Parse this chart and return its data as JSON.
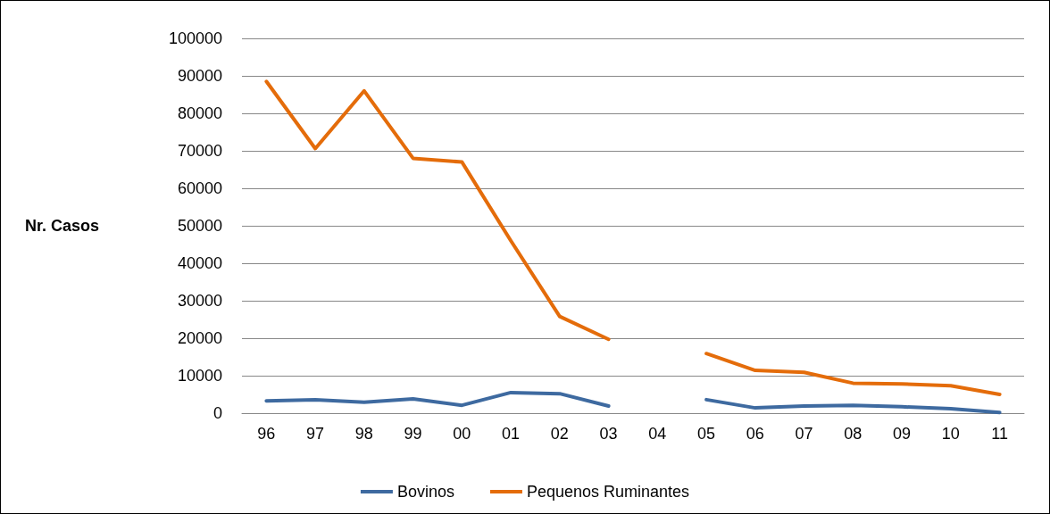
{
  "chart_data": {
    "type": "line",
    "ylabel": "Nr. Casos",
    "categories": [
      "96",
      "97",
      "98",
      "99",
      "00",
      "01",
      "02",
      "03",
      "04",
      "05",
      "06",
      "07",
      "08",
      "09",
      "10",
      "11"
    ],
    "series": [
      {
        "name": "Bovinos",
        "color": "#3e6aa0",
        "values": [
          3300,
          3600,
          2900,
          3800,
          2100,
          5500,
          5200,
          1900,
          null,
          3600,
          1400,
          1900,
          2100,
          1700,
          1200,
          200
        ]
      },
      {
        "name": "Pequenos Ruminantes",
        "color": "#e46c0a",
        "values": [
          88500,
          70600,
          86000,
          68000,
          67000,
          46000,
          25800,
          19700,
          null,
          15900,
          11400,
          10900,
          8000,
          7800,
          7300,
          5000
        ]
      }
    ],
    "ylim": [
      0,
      100000
    ],
    "yticks": [
      0,
      10000,
      20000,
      30000,
      40000,
      50000,
      60000,
      70000,
      80000,
      90000,
      100000
    ],
    "grid": "y",
    "legend": "bottom",
    "marker": "none",
    "line_style": "solid"
  }
}
